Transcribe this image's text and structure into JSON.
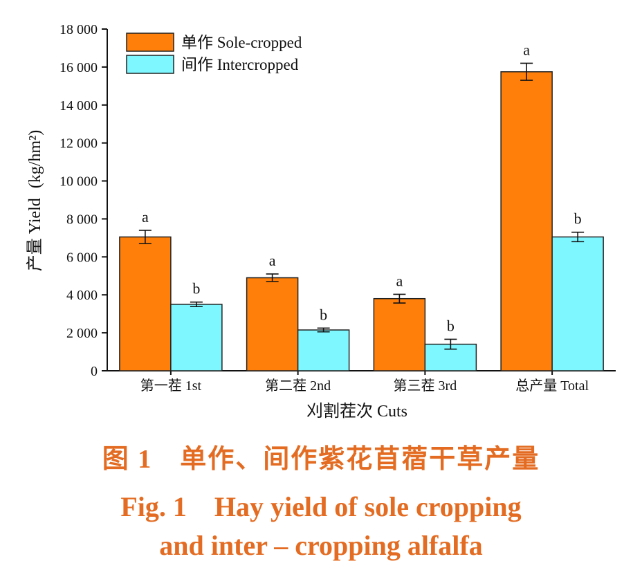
{
  "colors": {
    "sole": "#ff7f0a",
    "inter": "#7ff7ff",
    "caption": "#e36c22",
    "ink": "#111111"
  },
  "caption": {
    "zh": "图 1　单作、间作紫花苜蓿干草产量",
    "en_line1": "Fig. 1　Hay yield of sole cropping",
    "en_line2": "and inter – cropping alfalfa"
  },
  "chart_data": {
    "type": "bar",
    "title": "",
    "xlabel": "刈割茬次 Cuts",
    "ylabel_zh": "产量 Yield",
    "ylabel_unit": "(kg/hm²)",
    "ylim": [
      0,
      18000
    ],
    "yticks": [
      0,
      2000,
      4000,
      6000,
      8000,
      10000,
      12000,
      14000,
      16000,
      18000
    ],
    "ytick_labels": [
      "0",
      "2 000",
      "4 000",
      "6 000",
      "8 000",
      "10 000",
      "12 000",
      "14 000",
      "16 000",
      "18 000"
    ],
    "categories": [
      "第一茬 1st",
      "第二茬 2nd",
      "第三茬 3rd",
      "总产量 Total"
    ],
    "legend_position": "top-left",
    "grid": false,
    "series": [
      {
        "name": "单作 Sole-cropped",
        "color_key": "sole",
        "values": [
          7050,
          4900,
          3800,
          15750
        ],
        "errors": [
          350,
          200,
          230,
          450
        ],
        "letters": [
          "a",
          "a",
          "a",
          "a"
        ]
      },
      {
        "name": "间作 Intercropped",
        "color_key": "inter",
        "values": [
          3500,
          2150,
          1400,
          7050
        ],
        "errors": [
          120,
          100,
          260,
          250
        ],
        "letters": [
          "b",
          "b",
          "b",
          "b"
        ]
      }
    ]
  }
}
